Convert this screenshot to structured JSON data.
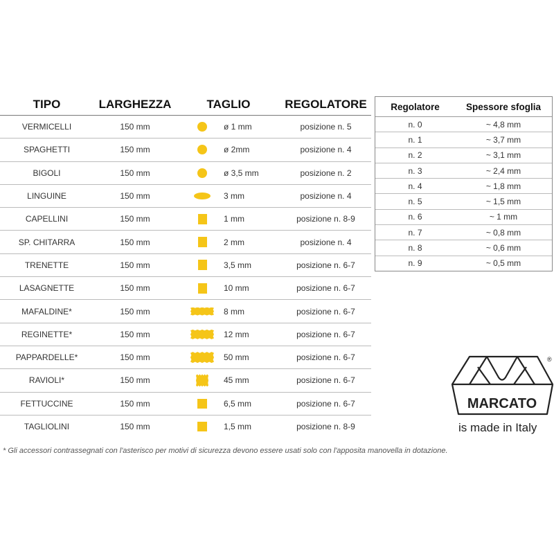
{
  "main_table": {
    "headers": [
      "TIPO",
      "LARGHEZZA",
      "TAGLIO",
      "REGOLATORE"
    ],
    "rows": [
      {
        "tipo": "VERMICELLI",
        "larghezza": "150 mm",
        "shape": "circle",
        "taglio": "ø 1 mm",
        "regolatore": "posizione n. 5"
      },
      {
        "tipo": "SPAGHETTI",
        "larghezza": "150 mm",
        "shape": "circle",
        "taglio": "ø 2mm",
        "regolatore": "posizione n. 4"
      },
      {
        "tipo": "BIGOLI",
        "larghezza": "150 mm",
        "shape": "circle",
        "taglio": "ø 3,5 mm",
        "regolatore": "posizione n. 2"
      },
      {
        "tipo": "LINGUINE",
        "larghezza": "150 mm",
        "shape": "ellipse",
        "taglio": "3 mm",
        "regolatore": "posizione n. 4"
      },
      {
        "tipo": "CAPELLINI",
        "larghezza": "150 mm",
        "shape": "square",
        "taglio": "1 mm",
        "regolatore": "posizione n. 8-9"
      },
      {
        "tipo": "SP. CHITARRA",
        "larghezza": "150 mm",
        "shape": "square",
        "taglio": "2 mm",
        "regolatore": "posizione n. 4"
      },
      {
        "tipo": "TRENETTE",
        "larghezza": "150 mm",
        "shape": "square",
        "taglio": "3,5 mm",
        "regolatore": "posizione n. 6-7"
      },
      {
        "tipo": "LASAGNETTE",
        "larghezza": "150 mm",
        "shape": "square",
        "taglio": "10 mm",
        "regolatore": "posizione n. 6-7"
      },
      {
        "tipo": "MAFALDINE*",
        "larghezza": "150 mm",
        "shape": "wavy",
        "taglio": "8 mm",
        "regolatore": "posizione n. 6-7"
      },
      {
        "tipo": "REGINETTE*",
        "larghezza": "150 mm",
        "shape": "wavy w2",
        "taglio": "12 mm",
        "regolatore": "posizione n. 6-7"
      },
      {
        "tipo": "PAPPARDELLE*",
        "larghezza": "150 mm",
        "shape": "wavy w3",
        "taglio": "50 mm",
        "regolatore": "posizione n. 6-7"
      },
      {
        "tipo": "RAVIOLI*",
        "larghezza": "150 mm",
        "shape": "wavy wsq",
        "taglio": "45 mm",
        "regolatore": "posizione n. 6-7"
      },
      {
        "tipo": "FETTUCCINE",
        "larghezza": "150 mm",
        "shape": "sq2",
        "taglio": "6,5 mm",
        "regolatore": "posizione n. 6-7"
      },
      {
        "tipo": "TAGLIOLINI",
        "larghezza": "150 mm",
        "shape": "sq2",
        "taglio": "1,5 mm",
        "regolatore": "posizione n. 8-9"
      }
    ]
  },
  "side_table": {
    "headers": [
      "Regolatore",
      "Spessore sfoglia"
    ],
    "rows": [
      [
        "n. 0",
        "~ 4,8 mm"
      ],
      [
        "n. 1",
        "~ 3,7 mm"
      ],
      [
        "n. 2",
        "~ 3,1 mm"
      ],
      [
        "n. 3",
        "~ 2,4 mm"
      ],
      [
        "n. 4",
        "~ 1,8 mm"
      ],
      [
        "n. 5",
        "~ 1,5 mm"
      ],
      [
        "n. 6",
        "~ 1 mm"
      ],
      [
        "n. 7",
        "~ 0,8 mm"
      ],
      [
        "n. 8",
        "~ 0,6 mm"
      ],
      [
        "n. 9",
        "~ 0,5 mm"
      ]
    ]
  },
  "logo": {
    "text": "MARCATO",
    "registered": "®",
    "tagline": "is made in Italy"
  },
  "colors": {
    "pasta_shape": "#F5C518"
  },
  "footnote": "* Gli accessori contrassegnati con l'asterisco per motivi di sicurezza devono essere usati solo con l'apposita manovella in dotazione."
}
